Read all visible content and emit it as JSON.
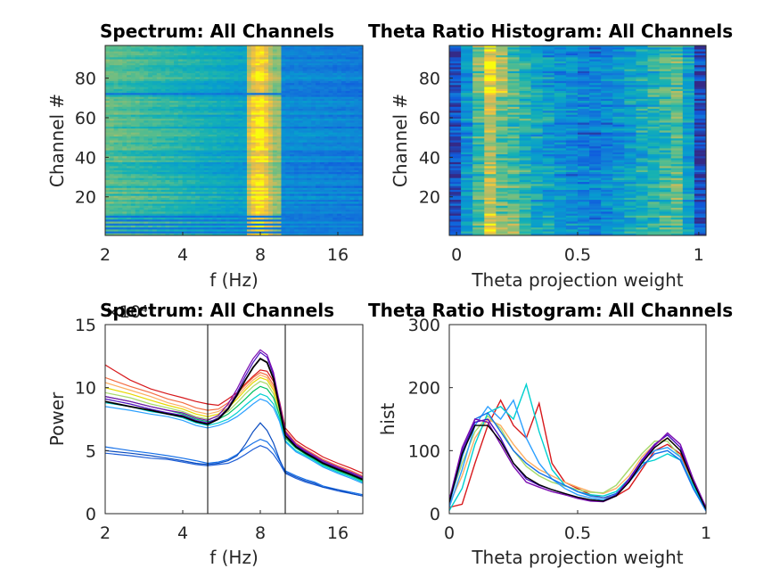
{
  "figure": {
    "background": "#ffffff",
    "colormap": "parula"
  },
  "chart_data": [
    {
      "id": "spectrum-image",
      "type": "heatmap",
      "title": "Spectrum: All Channels",
      "xlabel": "f (Hz)",
      "ylabel": "Channel #",
      "x_scale": "log2",
      "xlim": [
        2,
        20
      ],
      "ylim": [
        0.5,
        96.5
      ],
      "x_ticks": [
        2,
        4,
        8,
        16
      ],
      "x_tick_labels": [
        "2",
        "4",
        "8",
        "16"
      ],
      "y_ticks": [
        20,
        40,
        60,
        80
      ],
      "y_tick_labels": [
        "20",
        "40",
        "60",
        "80"
      ],
      "rows": 96,
      "bright_band_hz": [
        7,
        9.5
      ],
      "low_power_channels": [
        2,
        4,
        6,
        8,
        10,
        72
      ]
    },
    {
      "id": "theta-hist-image",
      "type": "heatmap",
      "title": "Theta Ratio Histogram: All Channels",
      "xlabel": "Theta projection weight",
      "ylabel": "Channel #",
      "xlim": [
        -0.03,
        1.03
      ],
      "ylim": [
        0.5,
        96.5
      ],
      "x_ticks": [
        0,
        0.5,
        1
      ],
      "x_tick_labels": [
        "0",
        "0.5",
        "1"
      ],
      "y_ticks": [
        20,
        40,
        60,
        80
      ],
      "y_tick_labels": [
        "20",
        "40",
        "60",
        "80"
      ],
      "rows": 96,
      "bins": 20
    },
    {
      "id": "spectrum-lines",
      "type": "line",
      "title": "Spectrum: All Channels",
      "xlabel": "f (Hz)",
      "ylabel": "Power",
      "x_scale": "log2",
      "xlim": [
        2,
        20
      ],
      "ylim": [
        0,
        15
      ],
      "x_ticks": [
        2,
        4,
        8,
        16
      ],
      "x_tick_labels": [
        "2",
        "4",
        "8",
        "16"
      ],
      "y_ticks": [
        0,
        5,
        10,
        15
      ],
      "y_tick_labels": [
        "0",
        "5",
        "10",
        "15"
      ],
      "y_exponent_label": "×10⁴",
      "vertical_lines_hz": [
        5,
        10
      ],
      "x": [
        2,
        2.5,
        3,
        3.5,
        4,
        4.5,
        5,
        5.5,
        6,
        6.5,
        7,
        7.5,
        8,
        8.5,
        9,
        9.5,
        10,
        11,
        12,
        13,
        14,
        16,
        18,
        20
      ],
      "series": [
        {
          "color": "#d7191c",
          "values": [
            11.8,
            10.6,
            9.9,
            9.5,
            9.2,
            8.9,
            8.7,
            8.6,
            9.1,
            9.6,
            10.3,
            10.9,
            11.4,
            11.3,
            10.5,
            8.9,
            6.8,
            5.8,
            5.3,
            4.9,
            4.5,
            4.0,
            3.6,
            3.2
          ]
        },
        {
          "color": "#f46d43",
          "values": [
            10.8,
            10.1,
            9.6,
            9.1,
            8.8,
            8.4,
            8.2,
            8.3,
            8.8,
            9.5,
            10.2,
            10.8,
            11.2,
            11.0,
            10.2,
            8.6,
            6.6,
            5.6,
            5.1,
            4.7,
            4.3,
            3.8,
            3.4,
            3.0
          ]
        },
        {
          "color": "#fdae61",
          "values": [
            10.4,
            9.8,
            9.3,
            8.8,
            8.5,
            8.1,
            7.9,
            8.1,
            8.6,
            9.3,
            10.0,
            10.6,
            11.0,
            10.8,
            10.0,
            8.4,
            6.4,
            5.5,
            5.0,
            4.6,
            4.2,
            3.7,
            3.3,
            2.9
          ]
        },
        {
          "color": "#e6d800",
          "values": [
            10.0,
            9.5,
            9.0,
            8.6,
            8.3,
            7.9,
            7.7,
            7.9,
            8.4,
            9.1,
            9.8,
            10.4,
            10.8,
            10.6,
            9.8,
            8.2,
            6.3,
            5.4,
            4.9,
            4.5,
            4.1,
            3.6,
            3.2,
            2.8
          ]
        },
        {
          "color": "#a6d96a",
          "values": [
            9.6,
            9.2,
            8.7,
            8.4,
            8.1,
            7.7,
            7.5,
            7.7,
            8.1,
            8.8,
            9.5,
            10.1,
            10.5,
            10.3,
            9.5,
            8.0,
            6.1,
            5.3,
            4.8,
            4.4,
            4.0,
            3.5,
            3.1,
            2.7
          ]
        },
        {
          "color": "#00c060",
          "values": [
            9.3,
            8.9,
            8.5,
            8.2,
            7.9,
            7.5,
            7.3,
            7.5,
            7.9,
            8.5,
            9.1,
            9.7,
            10.1,
            9.9,
            9.2,
            7.8,
            6.0,
            5.2,
            4.7,
            4.3,
            3.9,
            3.4,
            3.0,
            2.6
          ]
        },
        {
          "color": "#00d0d0",
          "values": [
            8.8,
            8.5,
            8.1,
            7.9,
            7.6,
            7.2,
            7.0,
            7.2,
            7.5,
            8.0,
            8.6,
            9.1,
            9.5,
            9.3,
            8.7,
            7.5,
            5.8,
            5.0,
            4.6,
            4.2,
            3.8,
            3.3,
            2.9,
            2.5
          ]
        },
        {
          "color": "#2ca0ff",
          "values": [
            8.5,
            8.2,
            7.9,
            7.7,
            7.4,
            7.0,
            6.8,
            7.0,
            7.3,
            7.7,
            8.2,
            8.7,
            9.1,
            8.9,
            8.4,
            7.3,
            5.7,
            4.9,
            4.5,
            4.1,
            3.7,
            3.2,
            2.8,
            2.4
          ]
        },
        {
          "color": "#4b0fbf",
          "values": [
            9.1,
            8.7,
            8.3,
            8.0,
            7.8,
            7.4,
            7.2,
            7.6,
            8.4,
            9.6,
            10.9,
            12.0,
            12.8,
            12.4,
            11.0,
            8.6,
            6.4,
            5.4,
            4.9,
            4.5,
            4.1,
            3.6,
            3.2,
            2.8
          ]
        },
        {
          "color": "#7a0bb0",
          "values": [
            9.3,
            8.9,
            8.5,
            8.2,
            8.0,
            7.6,
            7.4,
            7.8,
            8.7,
            9.9,
            11.2,
            12.3,
            13.0,
            12.6,
            11.2,
            8.8,
            6.5,
            5.5,
            5.0,
            4.6,
            4.2,
            3.7,
            3.3,
            2.9
          ]
        },
        {
          "color": "#000000",
          "values": [
            8.9,
            8.5,
            8.2,
            7.9,
            7.7,
            7.3,
            7.1,
            7.5,
            8.3,
            9.4,
            10.6,
            11.6,
            12.3,
            12.0,
            10.7,
            8.4,
            6.2,
            5.3,
            4.8,
            4.4,
            4.0,
            3.5,
            3.1,
            2.7
          ]
        },
        {
          "color": "#1f5fd6",
          "values": [
            4.8,
            4.6,
            4.4,
            4.3,
            4.1,
            3.9,
            3.8,
            3.9,
            4.0,
            4.3,
            4.7,
            5.1,
            5.4,
            5.2,
            4.7,
            4.0,
            3.2,
            2.8,
            2.5,
            2.3,
            2.1,
            1.8,
            1.6,
            1.4
          ]
        },
        {
          "color": "#1570e8",
          "values": [
            5.3,
            5.0,
            4.8,
            4.6,
            4.4,
            4.2,
            4.0,
            4.1,
            4.3,
            4.7,
            5.2,
            5.6,
            5.9,
            5.7,
            5.1,
            4.2,
            3.4,
            3.0,
            2.7,
            2.5,
            2.2,
            1.9,
            1.7,
            1.5
          ]
        },
        {
          "color": "#0a4cc0",
          "values": [
            5.0,
            4.8,
            4.6,
            4.4,
            4.2,
            4.0,
            3.9,
            4.0,
            4.2,
            4.6,
            5.5,
            6.5,
            7.2,
            6.6,
            5.6,
            4.3,
            3.3,
            2.9,
            2.6,
            2.4,
            2.1,
            1.9,
            1.6,
            1.4
          ]
        }
      ]
    },
    {
      "id": "theta-hist-lines",
      "type": "line",
      "title": "Theta Ratio Histogram: All Channels",
      "xlabel": "Theta projection weight",
      "ylabel": "hist",
      "xlim": [
        0,
        1
      ],
      "ylim": [
        0,
        300
      ],
      "x_ticks": [
        0,
        0.5,
        1
      ],
      "x_tick_labels": [
        "0",
        "0.5",
        "1"
      ],
      "y_ticks": [
        0,
        100,
        200,
        300
      ],
      "y_tick_labels": [
        "0",
        "100",
        "200",
        "300"
      ],
      "x": [
        0.0,
        0.05,
        0.1,
        0.15,
        0.2,
        0.25,
        0.3,
        0.35,
        0.4,
        0.45,
        0.5,
        0.55,
        0.6,
        0.65,
        0.7,
        0.75,
        0.8,
        0.85,
        0.9,
        0.95,
        1.0
      ],
      "series": [
        {
          "color": "#d7191c",
          "values": [
            10,
            15,
            80,
            140,
            180,
            140,
            120,
            175,
            80,
            50,
            40,
            30,
            25,
            28,
            40,
            70,
            100,
            110,
            95,
            50,
            5
          ]
        },
        {
          "color": "#fdae61",
          "values": [
            15,
            60,
            120,
            150,
            140,
            110,
            85,
            70,
            60,
            50,
            42,
            35,
            32,
            40,
            60,
            90,
            110,
            120,
            100,
            55,
            8
          ]
        },
        {
          "color": "#a6d96a",
          "values": [
            20,
            80,
            130,
            155,
            135,
            100,
            75,
            60,
            50,
            44,
            38,
            34,
            33,
            45,
            70,
            95,
            115,
            115,
            90,
            45,
            6
          ]
        },
        {
          "color": "#00d0d0",
          "values": [
            5,
            40,
            110,
            160,
            170,
            150,
            205,
            130,
            70,
            45,
            35,
            30,
            28,
            35,
            55,
            80,
            85,
            95,
            85,
            45,
            5
          ]
        },
        {
          "color": "#2ca0ff",
          "values": [
            10,
            70,
            140,
            170,
            150,
            180,
            120,
            80,
            55,
            40,
            30,
            25,
            22,
            30,
            50,
            85,
            100,
            105,
            90,
            40,
            4
          ]
        },
        {
          "color": "#1570e8",
          "values": [
            15,
            90,
            150,
            160,
            130,
            100,
            80,
            65,
            55,
            45,
            35,
            28,
            25,
            32,
            50,
            75,
            95,
            100,
            85,
            40,
            5
          ]
        },
        {
          "color": "#4b0fbf",
          "values": [
            20,
            100,
            145,
            150,
            120,
            80,
            55,
            45,
            38,
            32,
            26,
            22,
            20,
            30,
            55,
            85,
            110,
            125,
            105,
            50,
            8
          ]
        },
        {
          "color": "#7a0bb0",
          "values": [
            22,
            105,
            150,
            145,
            110,
            75,
            50,
            42,
            35,
            30,
            24,
            20,
            19,
            28,
            52,
            82,
            108,
            128,
            110,
            55,
            10
          ]
        },
        {
          "color": "#000000",
          "values": [
            18,
            95,
            140,
            140,
            115,
            80,
            58,
            46,
            38,
            32,
            26,
            22,
            20,
            28,
            50,
            80,
            105,
            120,
            100,
            50,
            7
          ]
        }
      ]
    }
  ]
}
